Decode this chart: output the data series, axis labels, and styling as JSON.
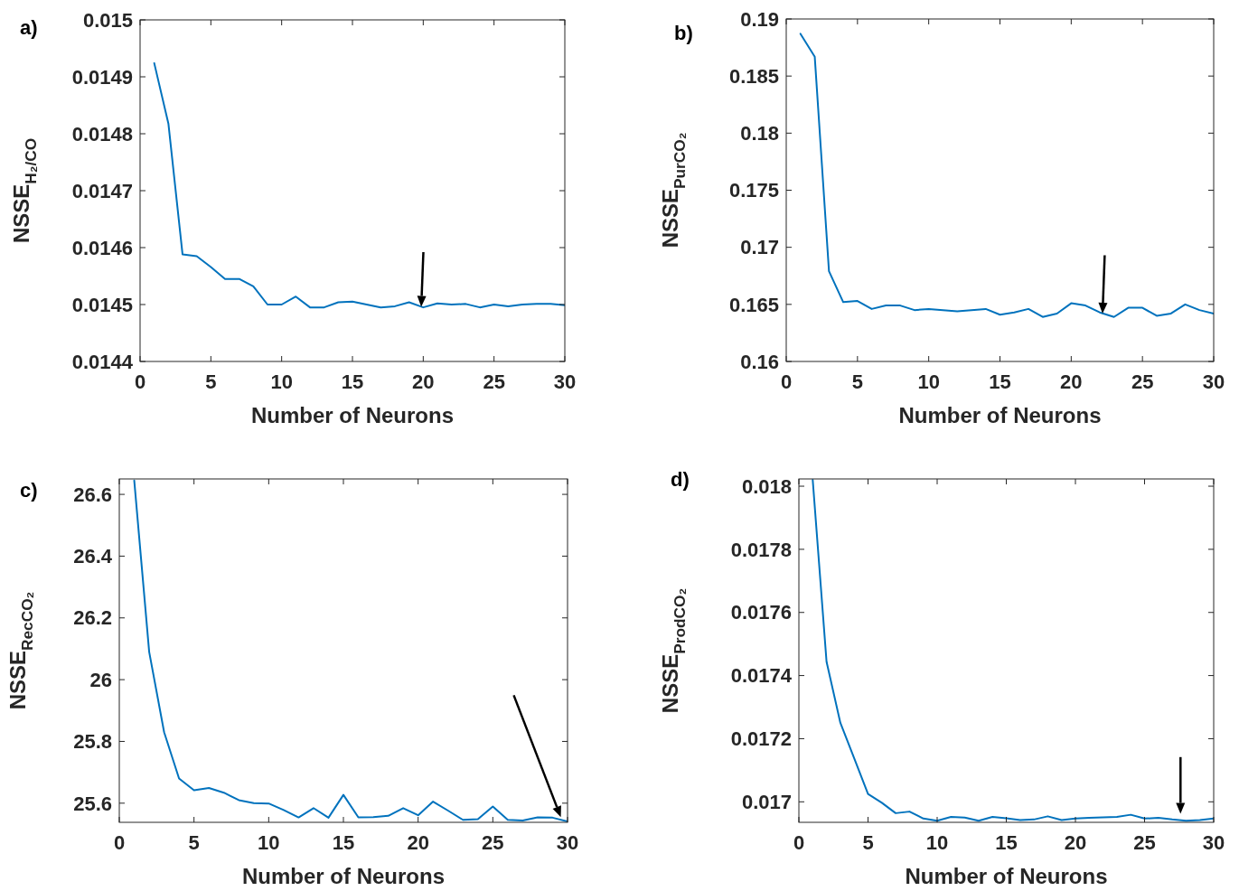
{
  "chart_data": [
    {
      "type": "line",
      "title": "a)",
      "xlabel": "Number of Neurons",
      "ylabel": "NSSE$_{H₂/CO}$",
      "x": [
        1,
        2,
        3,
        4,
        5,
        6,
        7,
        8,
        9,
        10,
        11,
        12,
        13,
        14,
        15,
        16,
        17,
        18,
        19,
        20,
        21,
        22,
        23,
        24,
        25,
        26,
        27,
        28,
        29,
        30
      ],
      "xlim": [
        0,
        30
      ],
      "xticks": [
        0,
        5,
        10,
        15,
        20,
        25,
        30
      ],
      "ylim": [
        0.0144,
        0.015
      ],
      "yticks": [
        0.0144,
        0.0145,
        0.0146,
        0.0147,
        0.0148,
        0.0149,
        0.015
      ],
      "grid": false,
      "marker": "none",
      "line_style": "solid",
      "series": [
        {
          "color": "#0072bd",
          "values": [
            0.014924,
            0.014818,
            0.014588,
            0.014585,
            0.014566,
            0.014545,
            0.014545,
            0.014532,
            0.0145,
            0.0145,
            0.014514,
            0.014495,
            0.014495,
            0.014504,
            0.014505,
            0.0145,
            0.014495,
            0.014497,
            0.014504,
            0.014495,
            0.014502,
            0.0145,
            0.014501,
            0.014495,
            0.0145,
            0.014497,
            0.0145,
            0.014501,
            0.014501,
            0.014499
          ]
        }
      ]
    },
    {
      "type": "line",
      "title": "b)",
      "xlabel": "Number of Neurons",
      "ylabel": "NSSE$_{PurCO₂}$",
      "x": [
        1,
        2,
        3,
        4,
        5,
        6,
        7,
        8,
        9,
        10,
        11,
        12,
        13,
        14,
        15,
        16,
        17,
        18,
        19,
        20,
        21,
        22,
        23,
        24,
        25,
        26,
        27,
        28,
        29,
        30
      ],
      "xlim": [
        0,
        30
      ],
      "xticks": [
        0,
        5,
        10,
        15,
        20,
        25,
        30
      ],
      "ylim": [
        0.16,
        0.19
      ],
      "yticks": [
        0.16,
        0.165,
        0.17,
        0.175,
        0.18,
        0.185,
        0.19
      ],
      "grid": false,
      "marker": "none",
      "line_style": "solid",
      "series": [
        {
          "color": "#0072bd",
          "values": [
            0.1887,
            0.1867,
            0.1679,
            0.1652,
            0.1653,
            0.1646,
            0.1649,
            0.1649,
            0.1645,
            0.1646,
            0.1645,
            0.1644,
            0.1645,
            0.1646,
            0.1641,
            0.1643,
            0.1646,
            0.1639,
            0.1642,
            0.1651,
            0.1649,
            0.1643,
            0.1639,
            0.1647,
            0.1647,
            0.164,
            0.1642,
            0.165,
            0.1645,
            0.1642
          ]
        }
      ]
    },
    {
      "type": "line",
      "title": "c)",
      "xlabel": "Number of Neurons",
      "ylabel": "NSSE$_{RecCO₂}$",
      "x": [
        1,
        2,
        3,
        4,
        5,
        6,
        7,
        8,
        9,
        10,
        11,
        12,
        13,
        14,
        15,
        16,
        17,
        18,
        19,
        20,
        21,
        22,
        23,
        24,
        25,
        26,
        27,
        28,
        29,
        30
      ],
      "xlim": [
        0,
        30
      ],
      "xticks": [
        0,
        5,
        10,
        15,
        20,
        25,
        30
      ],
      "ylim": [
        25.538,
        26.65
      ],
      "yticks": [
        25.6,
        25.8,
        26,
        26.2,
        26.4,
        26.6
      ],
      "grid": false,
      "marker": "none",
      "line_style": "solid",
      "series": [
        {
          "color": "#0072bd",
          "values": [
            26.645,
            26.09,
            25.83,
            25.68,
            25.642,
            25.649,
            25.634,
            25.61,
            25.6,
            25.599,
            25.578,
            25.554,
            25.584,
            25.553,
            25.627,
            25.554,
            25.555,
            25.559,
            25.584,
            25.561,
            25.605,
            25.576,
            25.546,
            25.548,
            25.589,
            25.546,
            25.544,
            25.554,
            25.553,
            25.541
          ]
        }
      ]
    },
    {
      "type": "line",
      "title": "d)",
      "xlabel": "Number of Neurons",
      "ylabel": "NSSE$_{ProdCO₂}$",
      "x": [
        1,
        2,
        3,
        4,
        5,
        6,
        7,
        8,
        9,
        10,
        11,
        12,
        13,
        14,
        15,
        16,
        17,
        18,
        19,
        20,
        21,
        22,
        23,
        24,
        25,
        26,
        27,
        28,
        29,
        30
      ],
      "xlim": [
        0,
        30
      ],
      "xticks": [
        0,
        5,
        10,
        15,
        20,
        25,
        30
      ],
      "ylim": [
        0.016935,
        0.018023
      ],
      "yticks": [
        0.017,
        0.0172,
        0.0174,
        0.0176,
        0.0178,
        0.018
      ],
      "grid": false,
      "marker": "none",
      "line_style": "solid",
      "series": [
        {
          "color": "#0072bd",
          "values": [
            0.01802,
            0.017444,
            0.01725,
            0.017138,
            0.017025,
            0.016997,
            0.016964,
            0.016969,
            0.016947,
            0.01694,
            0.016952,
            0.01695,
            0.01694,
            0.016952,
            0.016948,
            0.016942,
            0.016944,
            0.016954,
            0.016942,
            0.016947,
            0.016949,
            0.016951,
            0.016952,
            0.016959,
            0.016947,
            0.016949,
            0.016944,
            0.01694,
            0.016942,
            0.016947
          ]
        }
      ]
    }
  ]
}
